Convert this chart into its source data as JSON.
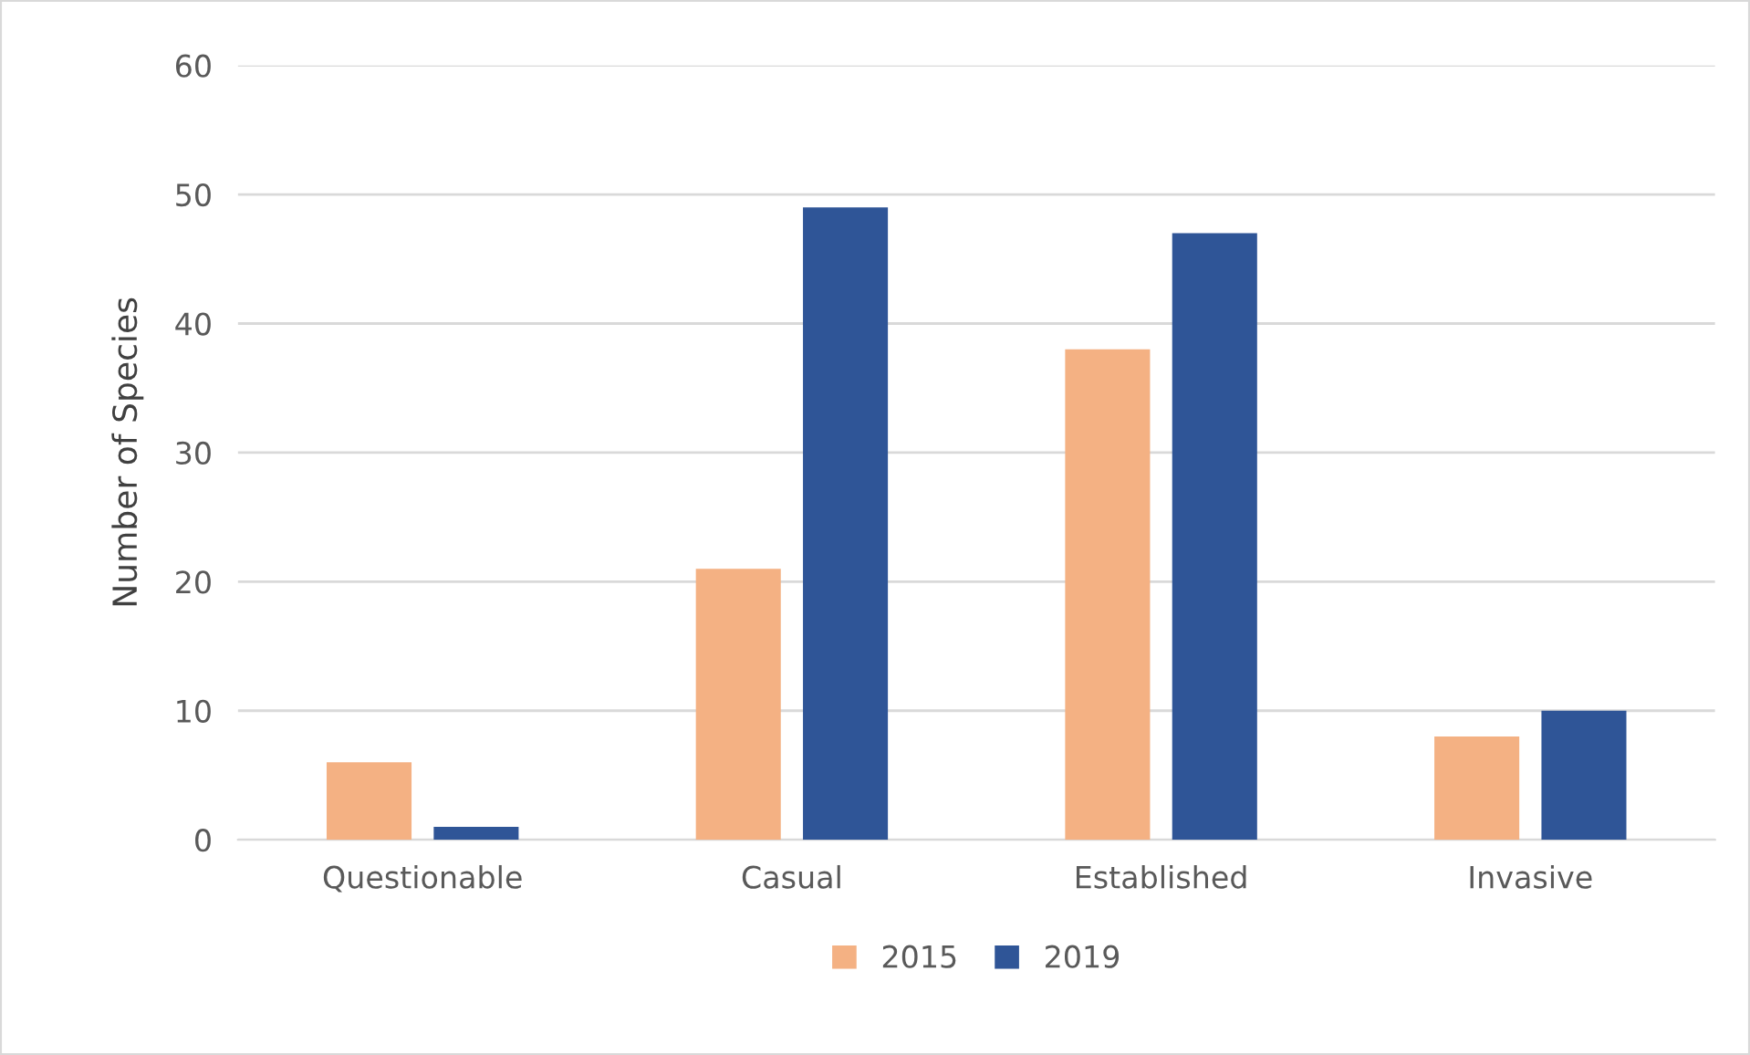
{
  "chart_data": {
    "type": "bar",
    "ylabel": "Number of Species",
    "categories": [
      "Questionable",
      "Casual",
      "Established",
      "Invasive"
    ],
    "series": [
      {
        "name": "2015",
        "color": "#f4b183",
        "values": [
          6,
          21,
          38,
          8
        ]
      },
      {
        "name": "2019",
        "color": "#2f5597",
        "values": [
          1,
          49,
          47,
          10
        ]
      }
    ],
    "ylim": [
      0,
      60
    ],
    "yticks": [
      0,
      10,
      20,
      30,
      40,
      50,
      60
    ],
    "grid": "y",
    "legend": "bottom"
  }
}
